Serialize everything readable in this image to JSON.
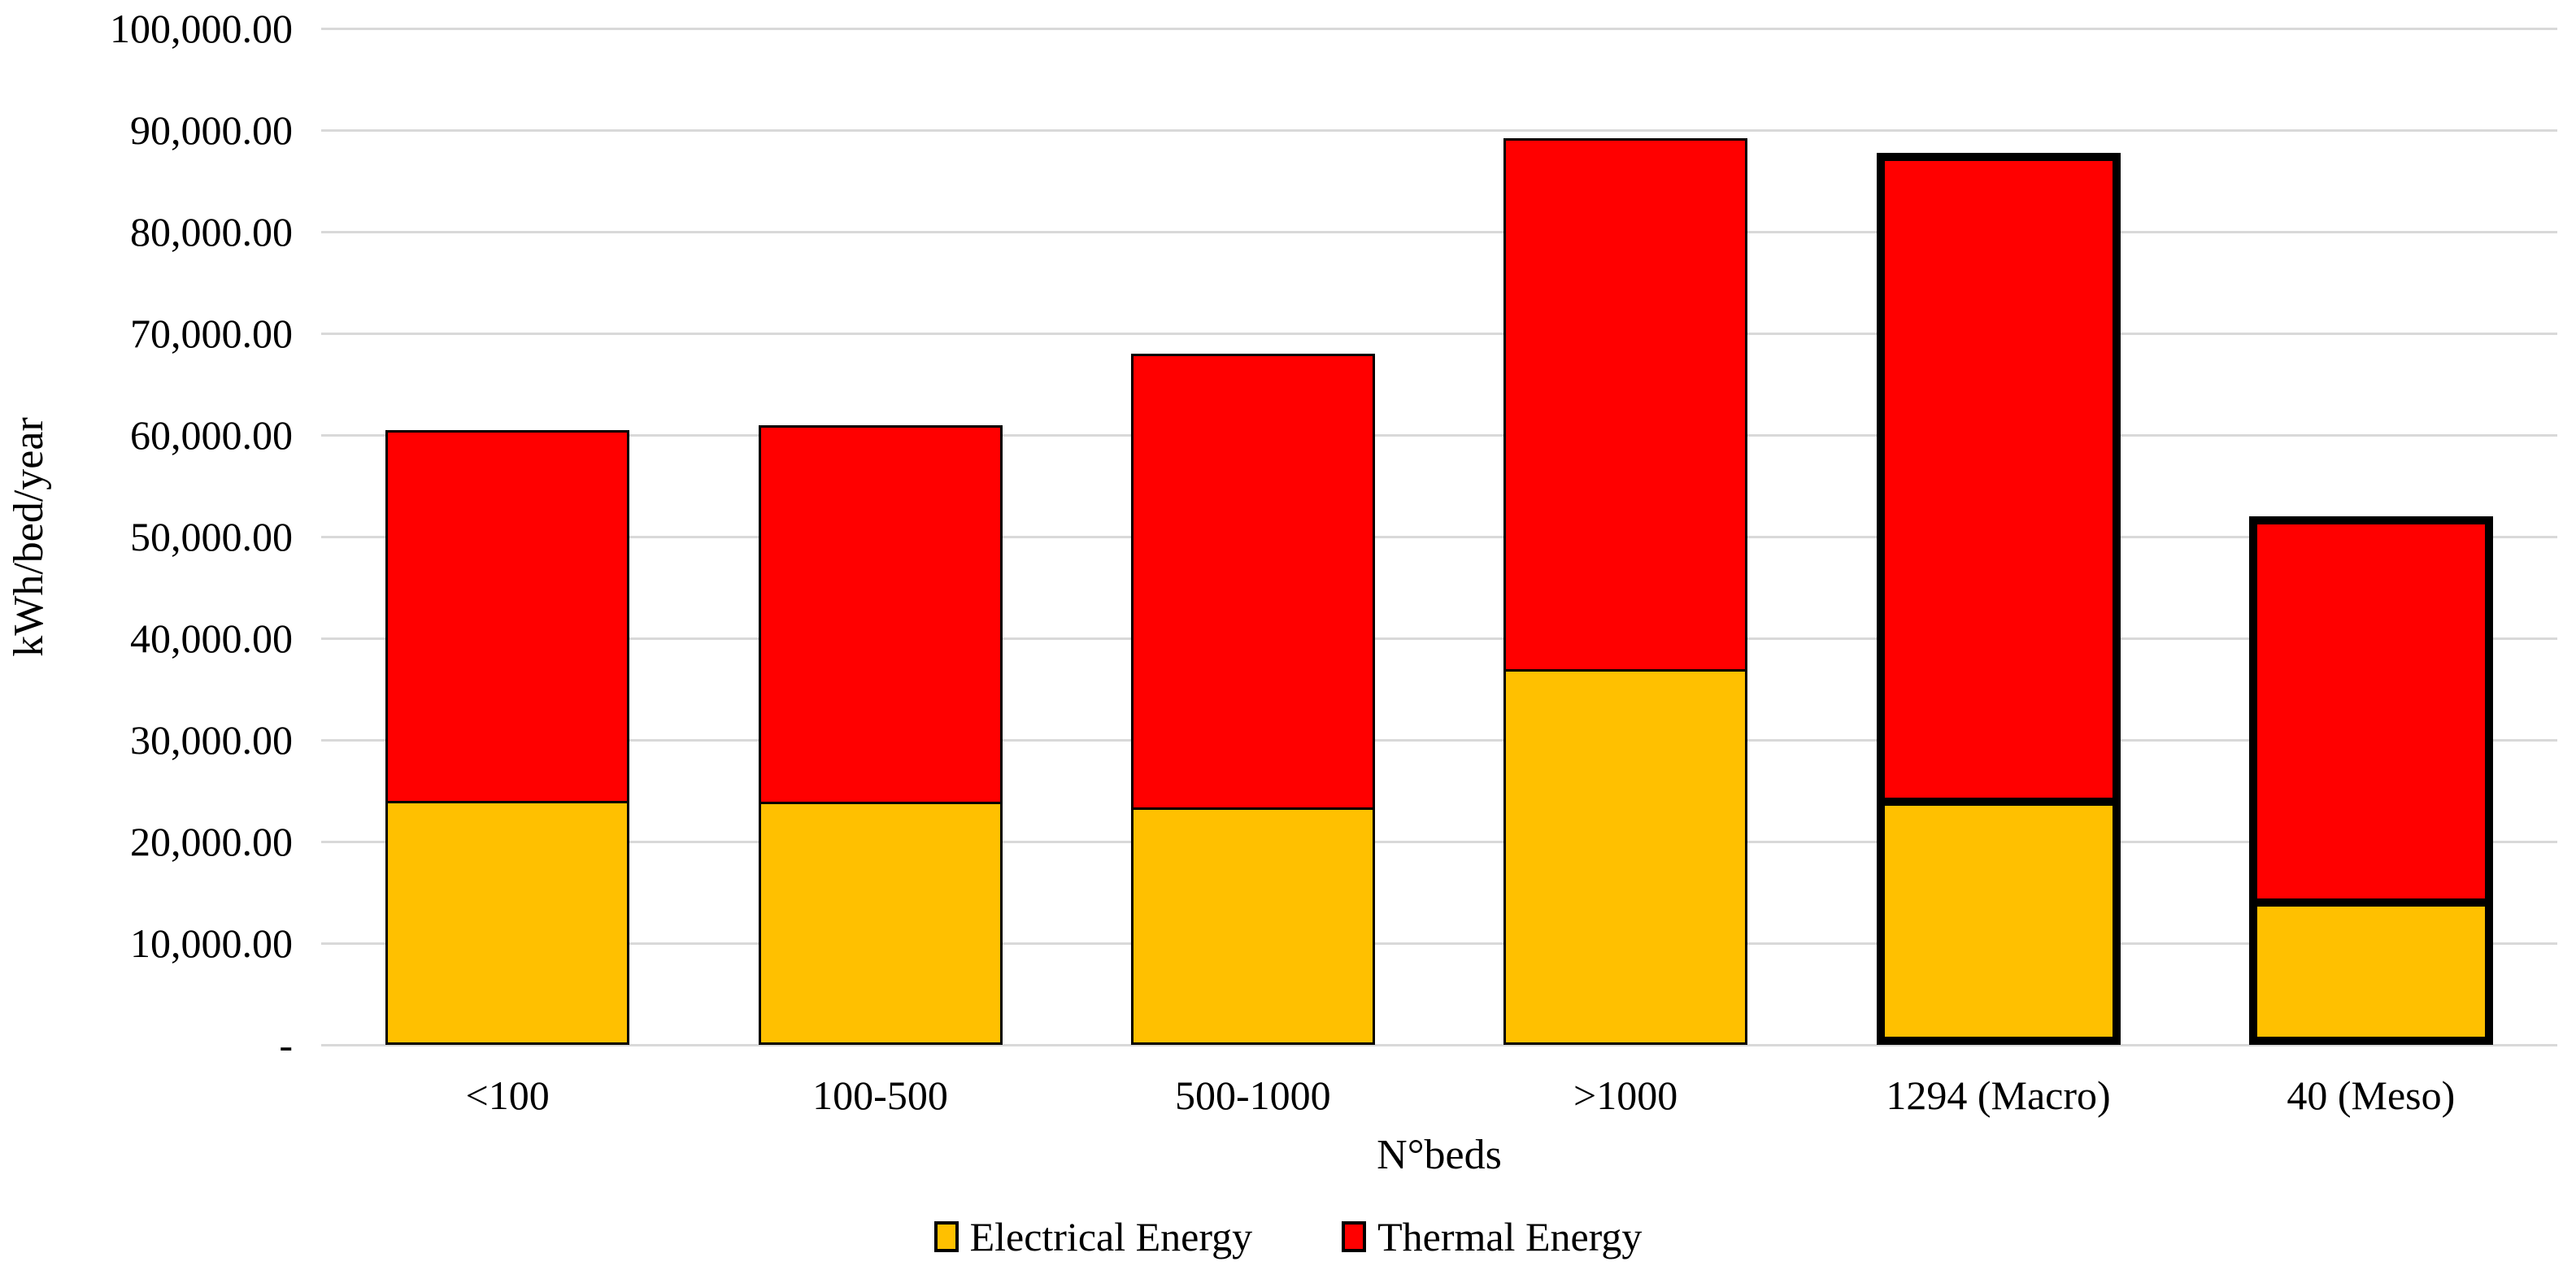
{
  "chart_data": {
    "type": "bar",
    "stacked": true,
    "title": "",
    "xlabel": "N°beds",
    "ylabel": "kWh/bed/year",
    "categories": [
      "<100",
      "100-500",
      "500-1000",
      ">1000",
      "1294 (Macro)",
      "40 (Meso)"
    ],
    "series": [
      {
        "name": "Electrical Energy",
        "color": "#FFC000",
        "values": [
          24000,
          23900,
          23400,
          37000,
          24300,
          14400
        ]
      },
      {
        "name": "Thermal Energy",
        "color": "#FF0000",
        "values": [
          36500,
          37100,
          44600,
          52200,
          63500,
          37600
        ]
      }
    ],
    "stack_totals": [
      60500,
      61000,
      68000,
      89200,
      87800,
      52000
    ],
    "emphasized_categories": [
      "1294 (Macro)",
      "40 (Meso)"
    ],
    "ylim": [
      0,
      100000
    ],
    "ytick_step": 10000,
    "ytick_labels": [
      "-",
      "10,000.00",
      "20,000.00",
      "30,000.00",
      "40,000.00",
      "50,000.00",
      "60,000.00",
      "70,000.00",
      "80,000.00",
      "90,000.00",
      "100,000.00"
    ],
    "grid": "horizontal-gridlines",
    "legend_position": "bottom",
    "bar_border_color": "#000000",
    "gridline_color": "#D9D9D9"
  }
}
